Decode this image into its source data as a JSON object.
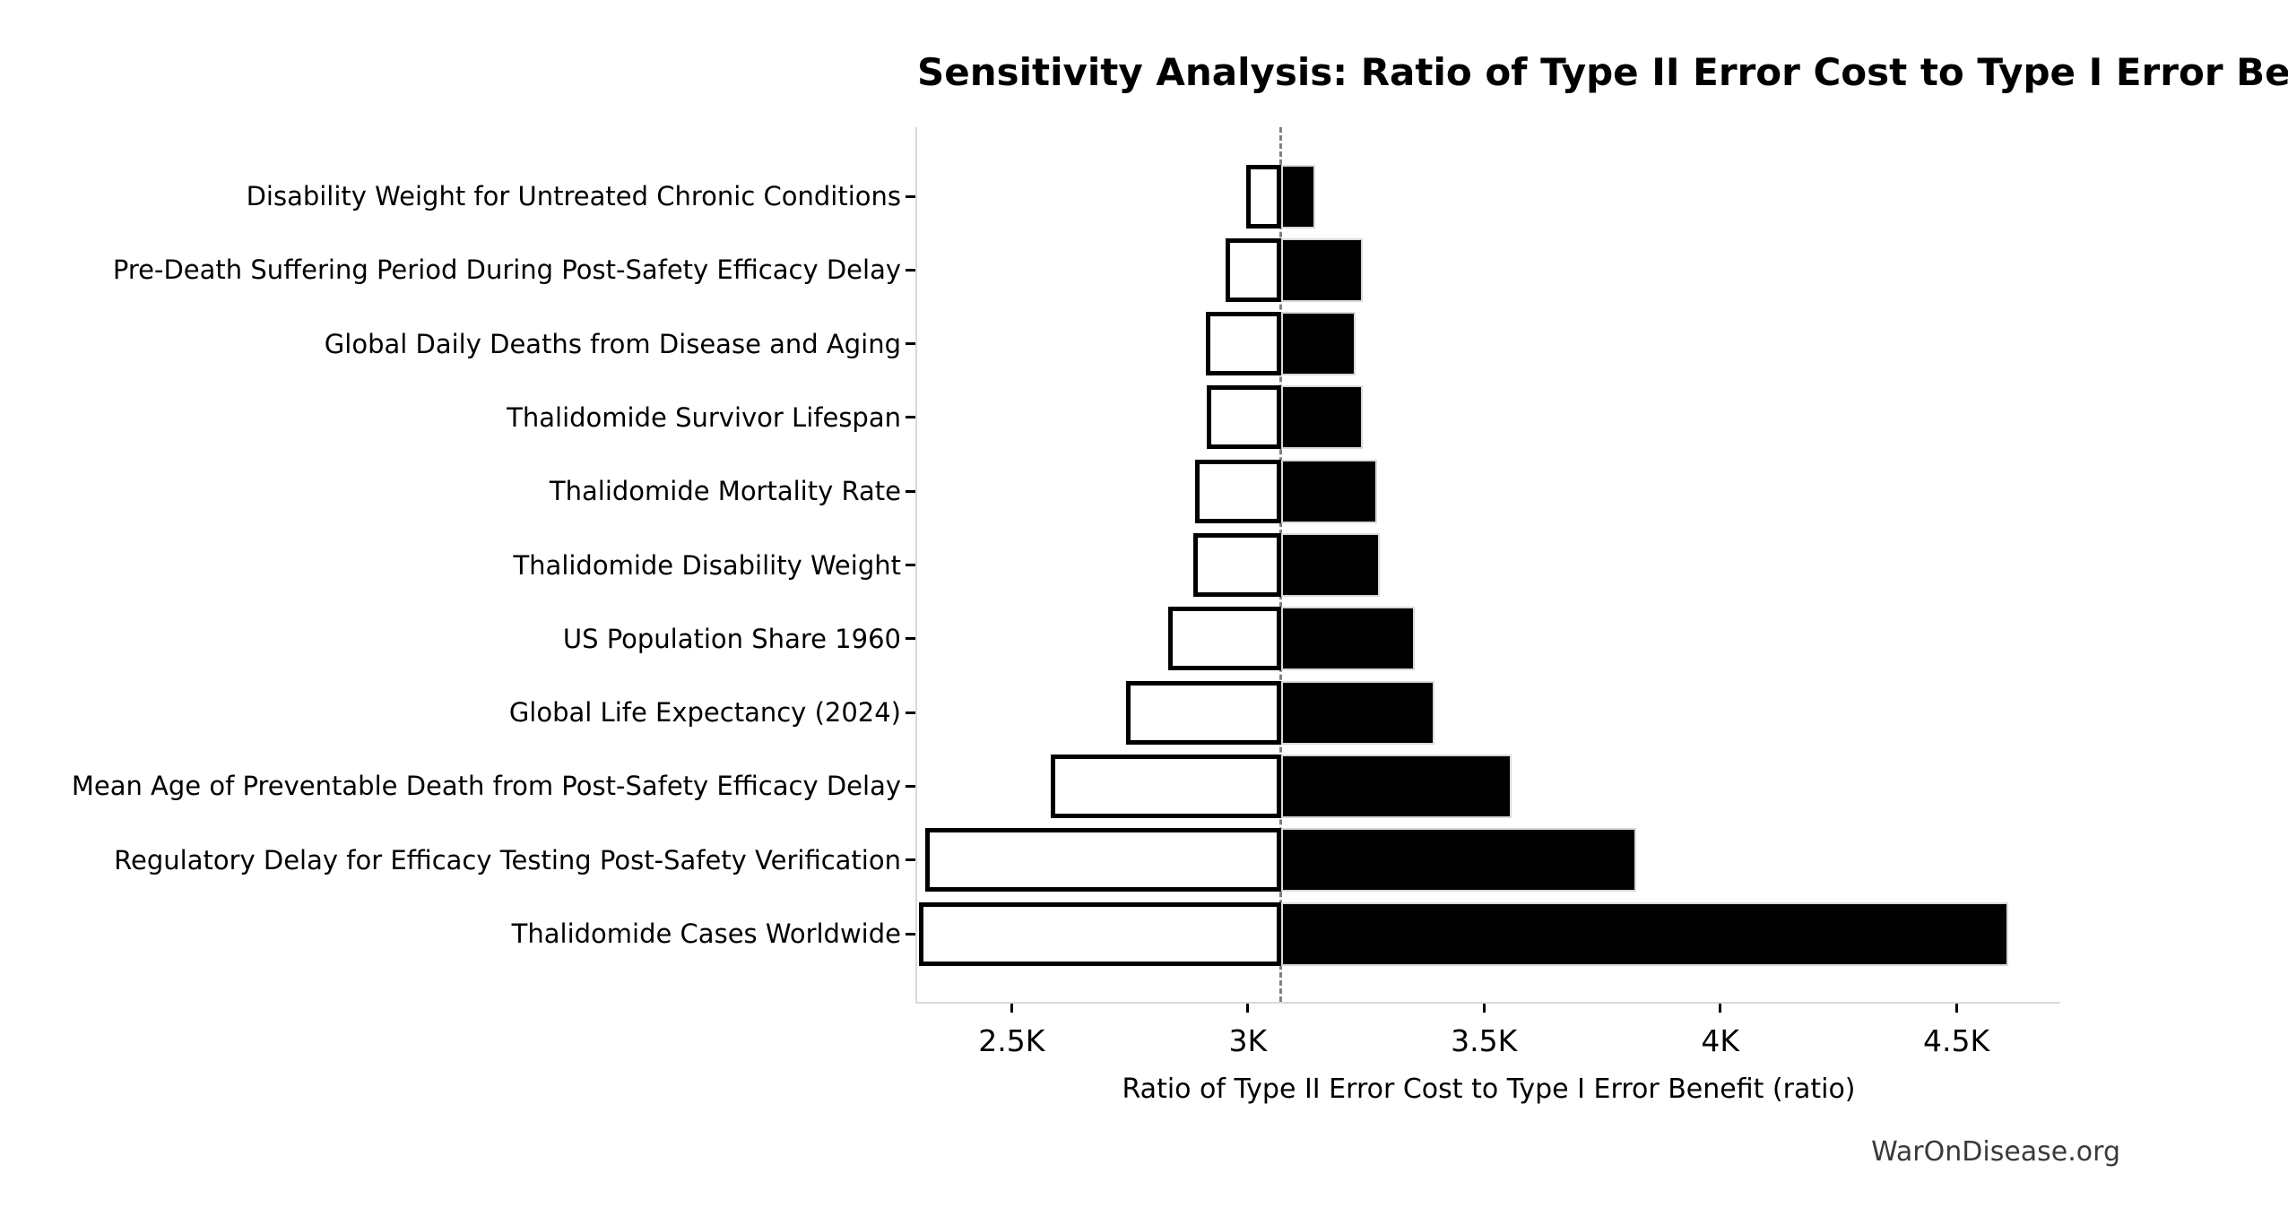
{
  "figure": {
    "watermark": "WarOnDisease.org"
  },
  "colors": {
    "background": "#ffffff",
    "bar_low_fill": "#ffffff",
    "bar_low_border": "#000000",
    "bar_high_fill": "#000000",
    "bar_high_border": "#d9d9d9",
    "baseline_dash": "#7f7f7f",
    "spine": "#d9d9d9",
    "text": "#000000",
    "watermark_text": "#3a3a3a"
  },
  "chart_data": {
    "type": "bar",
    "variant": "tornado-sensitivity",
    "orientation": "horizontal",
    "title": "Sensitivity Analysis: Ratio of Type II Error Cost to Type I Error Benefit",
    "xlabel": "Ratio of Type II Error Cost to Type I Error Benefit (ratio)",
    "ylabel": "",
    "grid": false,
    "legend": null,
    "xlim": [
      2300,
      4720
    ],
    "baseline": 3070,
    "xticks": {
      "values": [
        2500,
        3000,
        3500,
        4000,
        4500
      ],
      "labels": [
        "2.5K",
        "3K",
        "3.5K",
        "4K",
        "4.5K"
      ]
    },
    "categories": [
      "Disability Weight for Untreated Chronic Conditions",
      "Pre-Death Suffering Period During Post-Safety Efficacy Delay",
      "Global Daily Deaths from Disease and Aging",
      "Thalidomide Survivor Lifespan",
      "Thalidomide Mortality Rate",
      "Thalidomide Disability Weight",
      "US Population Share 1960",
      "Global Life Expectancy (2024)",
      "Mean Age of Preventable Death from Post-Safety Efficacy Delay",
      "Regulatory Delay for Efficacy Testing Post-Safety Verification",
      "Thalidomide Cases Worldwide"
    ],
    "series": [
      {
        "name": "low_end",
        "fill": "white",
        "values": [
          2997,
          2952,
          2912,
          2913,
          2889,
          2885,
          2832,
          2743,
          2582,
          2317,
          2303
        ]
      },
      {
        "name": "high_end",
        "fill": "black",
        "values": [
          3142,
          3244,
          3229,
          3243,
          3273,
          3280,
          3354,
          3396,
          3558,
          3823,
          4610
        ]
      }
    ]
  }
}
